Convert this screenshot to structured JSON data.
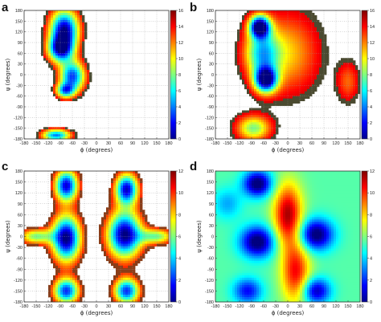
{
  "chart_data": [
    {
      "panel_label": "a",
      "type": "heatmap",
      "style": "contour-on-white",
      "xlabel": "ϕ (degrees)",
      "ylabel": "ψ (degrees)",
      "xlim": [
        -180,
        180
      ],
      "ylim": [
        -180,
        180
      ],
      "xticks": [
        "-180",
        "-150",
        "-120",
        "-90",
        "-60",
        "-30",
        "0",
        "30",
        "60",
        "90",
        "120",
        "150",
        "180"
      ],
      "yticks": [
        "180",
        "150",
        "120",
        "90",
        "60",
        "30",
        "0",
        "-30",
        "-60",
        "-90",
        "-120",
        "-150",
        "-180"
      ],
      "colorbar": {
        "min": 0,
        "max": 16,
        "ticks": [
          "16",
          "14",
          "12",
          "10",
          "8",
          "6",
          "4",
          "2",
          "0"
        ]
      },
      "regions": [
        {
          "center": [
            -80,
            125
          ],
          "spread": [
            25,
            40
          ],
          "depth": 15.5
        },
        {
          "center": [
            -90,
            70
          ],
          "spread": [
            22,
            25
          ],
          "depth": 12
        },
        {
          "center": [
            -60,
            -5
          ],
          "spread": [
            22,
            30
          ],
          "depth": 13
        },
        {
          "center": [
            -78,
            -45
          ],
          "spread": [
            16,
            14
          ],
          "depth": 10
        },
        {
          "center": [
            -100,
            -170
          ],
          "spread": [
            25,
            12
          ],
          "depth": 12
        }
      ],
      "cutoff": 2.2,
      "grid": true
    },
    {
      "panel_label": "b",
      "type": "heatmap",
      "style": "contour-on-white",
      "xlabel": "ϕ (degrees)",
      "ylabel": "ψ (degrees)",
      "xlim": [
        -180,
        180
      ],
      "ylim": [
        -180,
        180
      ],
      "xticks": [
        "-180",
        "-150",
        "-120",
        "-90",
        "-60",
        "-30",
        "0",
        "30",
        "60",
        "90",
        "120",
        "150",
        "180"
      ],
      "yticks": [
        "180",
        "150",
        "120",
        "90",
        "60",
        "30",
        "0",
        "-30",
        "-60",
        "-90",
        "-120",
        "-150",
        "-180"
      ],
      "colorbar": {
        "min": 0,
        "max": 16,
        "ticks": [
          "16",
          "14",
          "12",
          "10",
          "8",
          "6",
          "4",
          "2",
          "0"
        ]
      },
      "regions": [
        {
          "center": [
            -70,
            135
          ],
          "spread": [
            18,
            22
          ],
          "depth": 16
        },
        {
          "center": [
            -55,
            -15
          ],
          "spread": [
            20,
            25
          ],
          "depth": 15
        },
        {
          "center": [
            -65,
            60
          ],
          "spread": [
            30,
            45
          ],
          "depth": 9
        },
        {
          "center": [
            -85,
            -150
          ],
          "spread": [
            30,
            25
          ],
          "depth": 8
        },
        {
          "center": [
            0,
            60
          ],
          "spread": [
            55,
            80
          ],
          "depth": 5
        },
        {
          "center": [
            150,
            -20
          ],
          "spread": [
            20,
            40
          ],
          "depth": 3.5
        }
      ],
      "cutoff": 1.5,
      "grid": true
    },
    {
      "panel_label": "c",
      "type": "heatmap",
      "style": "contour-on-white",
      "xlabel": "ϕ (degrees)",
      "ylabel": "ψ (degrees)",
      "xlim": [
        -180,
        180
      ],
      "ylim": [
        -180,
        180
      ],
      "xticks": [
        "-180",
        "-150",
        "-120",
        "-90",
        "-60",
        "-30",
        "0",
        "30",
        "60",
        "90",
        "120",
        "150",
        "180"
      ],
      "yticks": [
        "180",
        "150",
        "120",
        "90",
        "60",
        "30",
        "0",
        "-30",
        "-60",
        "-90",
        "-120",
        "-150",
        "-180"
      ],
      "colorbar": {
        "min": 0,
        "max": 12,
        "ticks": [
          "12",
          "10",
          "8",
          "6",
          "4",
          "2",
          "0"
        ]
      },
      "regions": [
        {
          "center": [
            -75,
            140
          ],
          "spread": [
            20,
            30
          ],
          "depth": 11
        },
        {
          "center": [
            -75,
            -5
          ],
          "spread": [
            25,
            45
          ],
          "depth": 12
        },
        {
          "center": [
            -75,
            -150
          ],
          "spread": [
            22,
            25
          ],
          "depth": 10
        },
        {
          "center": [
            75,
            130
          ],
          "spread": [
            20,
            30
          ],
          "depth": 11
        },
        {
          "center": [
            70,
            5
          ],
          "spread": [
            30,
            45
          ],
          "depth": 12
        },
        {
          "center": [
            75,
            -150
          ],
          "spread": [
            22,
            25
          ],
          "depth": 10
        },
        {
          "center": [
            -150,
            0
          ],
          "spread": [
            30,
            15
          ],
          "depth": 6
        },
        {
          "center": [
            150,
            0
          ],
          "spread": [
            30,
            15
          ],
          "depth": 6
        }
      ],
      "cutoff": 2,
      "grid": true
    },
    {
      "panel_label": "d",
      "type": "heatmap",
      "style": "filled-full",
      "xlabel": "ϕ (degrees)",
      "ylabel": "ψ (degrees)",
      "xlim": [
        -180,
        180
      ],
      "ylim": [
        -180,
        180
      ],
      "xticks": [
        "-180",
        "-150",
        "-120",
        "-90",
        "-60",
        "-30",
        "0",
        "30",
        "60",
        "90",
        "120",
        "150",
        "180"
      ],
      "yticks": [
        "180",
        "150",
        "120",
        "90",
        "60",
        "30",
        "0",
        "-30",
        "-60",
        "-90",
        "-120",
        "-150",
        "-180"
      ],
      "colorbar": {
        "min": 0,
        "max": 12,
        "ticks": [
          "12",
          "10",
          "8",
          "6",
          "4",
          "2",
          "0"
        ]
      },
      "regions": [
        {
          "center": [
            -75,
            145
          ],
          "spread": [
            25,
            25
          ],
          "depth": -6
        },
        {
          "center": [
            -75,
            -15
          ],
          "spread": [
            30,
            30
          ],
          "depth": -6
        },
        {
          "center": [
            70,
            5
          ],
          "spread": [
            30,
            30
          ],
          "depth": -6
        },
        {
          "center": [
            70,
            -150
          ],
          "spread": [
            25,
            25
          ],
          "depth": -5
        },
        {
          "center": [
            -100,
            -150
          ],
          "spread": [
            25,
            25
          ],
          "depth": -4
        },
        {
          "center": [
            0,
            60
          ],
          "spread": [
            25,
            60
          ],
          "depth": 6
        },
        {
          "center": [
            20,
            -100
          ],
          "spread": [
            25,
            60
          ],
          "depth": 5
        },
        {
          "center": [
            -150,
            90
          ],
          "spread": [
            25,
            30
          ],
          "depth": -2
        }
      ],
      "base": 5.5,
      "grid": false
    }
  ]
}
